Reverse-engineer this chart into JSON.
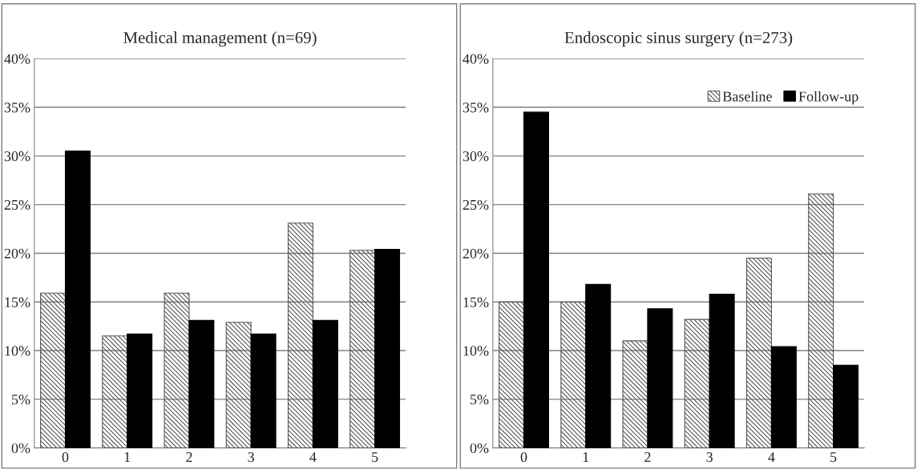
{
  "chart_data": [
    {
      "type": "bar",
      "title": "Medical management (n=69)",
      "categories": [
        "0",
        "1",
        "2",
        "3",
        "4",
        "5"
      ],
      "series": [
        {
          "color": "#555555",
          "values": [
            15.9,
            11.5,
            15.9,
            12.9,
            23.1,
            20.3
          ]
        },
        {
          "color": "#000000",
          "values": [
            30.5,
            11.7,
            13.1,
            11.7,
            13.1,
            20.4
          ]
        }
      ],
      "ylim": [
        0,
        40
      ],
      "yticks": [
        {
          "value": 0,
          "label": "0%"
        },
        {
          "value": 5,
          "label": "5%"
        },
        {
          "value": 10,
          "label": "10%"
        },
        {
          "value": 15,
          "label": "15%"
        },
        {
          "value": 20,
          "label": "20%"
        },
        {
          "value": 25,
          "label": "25%"
        },
        {
          "value": 30,
          "label": "30%"
        },
        {
          "value": 35,
          "label": "35%"
        },
        {
          "value": 40,
          "label": "40%"
        }
      ],
      "grid": "y"
    },
    {
      "type": "bar",
      "title": "Endoscopic sinus surgery (n=273)",
      "categories": [
        "0",
        "1",
        "2",
        "3",
        "4",
        "5"
      ],
      "series": [
        {
          "name": "Baseline",
          "color": "#555555",
          "values": [
            15.0,
            15.0,
            11.0,
            13.2,
            19.5,
            26.1
          ]
        },
        {
          "name": "Follow-up",
          "color": "#000000",
          "values": [
            34.5,
            16.8,
            14.3,
            15.8,
            10.4,
            8.5
          ]
        }
      ],
      "ylim": [
        0,
        40
      ],
      "yticks": [
        {
          "value": 0,
          "label": "0%"
        },
        {
          "value": 5,
          "label": "5%"
        },
        {
          "value": 10,
          "label": "10%"
        },
        {
          "value": 15,
          "label": "15%"
        },
        {
          "value": 20,
          "label": "20%"
        },
        {
          "value": 25,
          "label": "25%"
        },
        {
          "value": 30,
          "label": "30%"
        },
        {
          "value": 35,
          "label": "35%"
        },
        {
          "value": 40,
          "label": "40%"
        }
      ],
      "grid": "y",
      "legend": "top right"
    }
  ]
}
